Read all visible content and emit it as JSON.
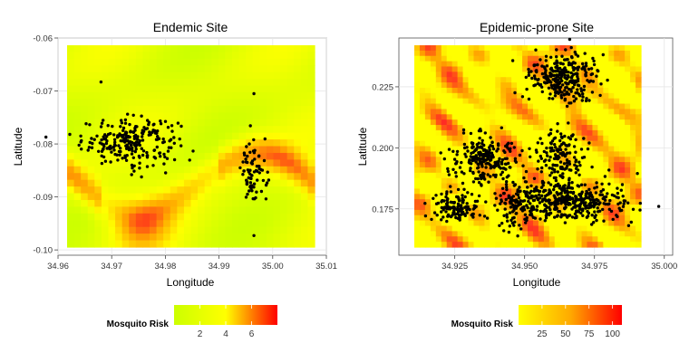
{
  "chart_data": [
    {
      "type": "heatmap",
      "title": "Endemic Site",
      "xlabel": "Longitude",
      "ylabel": "Latitude",
      "xlim": [
        34.96,
        35.01
      ],
      "ylim": [
        -0.101,
        -0.06
      ],
      "xticks": [
        34.96,
        34.97,
        34.98,
        34.99,
        35.0,
        35.01
      ],
      "xtick_labels": [
        "34.96",
        "34.97",
        "34.98",
        "34.99",
        "35.00",
        "35.01"
      ],
      "yticks": [
        -0.06,
        -0.07,
        -0.08,
        -0.09,
        -0.1
      ],
      "ytick_labels": [
        "-0.06",
        "-0.07",
        "-0.08",
        "-0.09",
        "-0.10"
      ],
      "grid": true,
      "fill_legend": {
        "title": "Mosquito Risk",
        "range": [
          0,
          8
        ],
        "ticks": [
          2,
          4,
          6
        ],
        "tick_labels": [
          "2",
          "4",
          "6"
        ],
        "colors": [
          "#ccff00",
          "#ffff00",
          "#ff0000"
        ],
        "placement": "bottom"
      },
      "point_clusters": [
        {
          "center": [
            34.9735,
            -0.0795
          ],
          "spread": [
            0.0045,
            0.0022
          ],
          "count": 230
        },
        {
          "center": [
            34.9965,
            -0.0855
          ],
          "spread": [
            0.0012,
            0.003
          ],
          "count": 75
        }
      ],
      "points": [
        [
          34.968,
          -0.0683
        ],
        [
          34.9965,
          -0.0973
        ],
        [
          34.9965,
          -0.0705
        ]
      ]
    },
    {
      "type": "heatmap",
      "title": "Epidemic-prone Site",
      "xlabel": "Longitude",
      "ylabel": "Latitude",
      "xlim": [
        34.905,
        35.003
      ],
      "ylim": [
        0.156,
        0.245
      ],
      "xticks": [
        34.925,
        34.95,
        34.975,
        35.0
      ],
      "xtick_labels": [
        "34.925",
        "34.950",
        "34.975",
        "35.000"
      ],
      "yticks": [
        0.175,
        0.2,
        0.225
      ],
      "ytick_labels": [
        "0.175",
        "0.200",
        "0.225"
      ],
      "grid": true,
      "fill_legend": {
        "title": "Mosquito Risk",
        "range": [
          0,
          110
        ],
        "ticks": [
          25,
          50,
          75,
          100
        ],
        "tick_labels": [
          "25",
          "50",
          "75",
          "100"
        ],
        "colors": [
          "#ffff00",
          "#ffaa00",
          "#ff0000"
        ],
        "placement": "bottom"
      },
      "point_clusters": [
        {
          "center": [
            34.964,
            0.229
          ],
          "spread": [
            0.006,
            0.005
          ],
          "count": 280
        },
        {
          "center": [
            34.962,
            0.196
          ],
          "spread": [
            0.004,
            0.0055
          ],
          "count": 150
        },
        {
          "center": [
            34.935,
            0.195
          ],
          "spread": [
            0.006,
            0.005
          ],
          "count": 230
        },
        {
          "center": [
            34.925,
            0.176
          ],
          "spread": [
            0.0045,
            0.003
          ],
          "count": 120
        },
        {
          "center": [
            34.965,
            0.178
          ],
          "spread": [
            0.011,
            0.004
          ],
          "count": 420
        },
        {
          "center": [
            34.946,
            0.178
          ],
          "spread": [
            0.003,
            0.006
          ],
          "count": 70
        }
      ],
      "points": [
        [
          34.998,
          0.176
        ]
      ]
    }
  ]
}
